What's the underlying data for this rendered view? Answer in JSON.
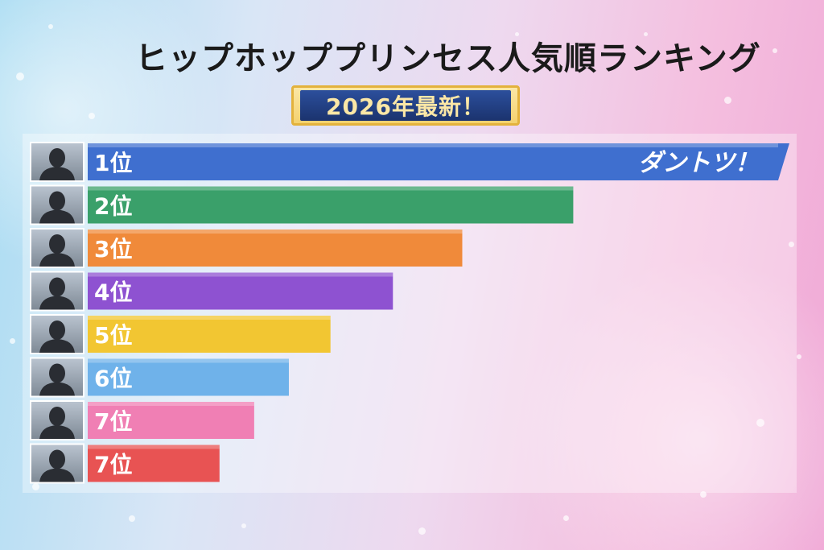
{
  "title": "ヒップホッププリンセス人気順ランキング",
  "badge": "2026年最新！",
  "chart_data": {
    "type": "bar",
    "orientation": "horizontal",
    "categories": [
      "1位",
      "2位",
      "3位",
      "4位",
      "5位",
      "6位",
      "7位",
      "7位"
    ],
    "values": [
      100,
      70,
      54,
      44,
      35,
      29,
      24,
      19
    ],
    "colors": [
      "#3f6fcf",
      "#3aa06a",
      "#f08a3a",
      "#8e52d1",
      "#f2c632",
      "#6fb2ea",
      "#f07fb4",
      "#e85353"
    ],
    "annotation": "ダントツ！",
    "grid": false,
    "legend": "none"
  }
}
